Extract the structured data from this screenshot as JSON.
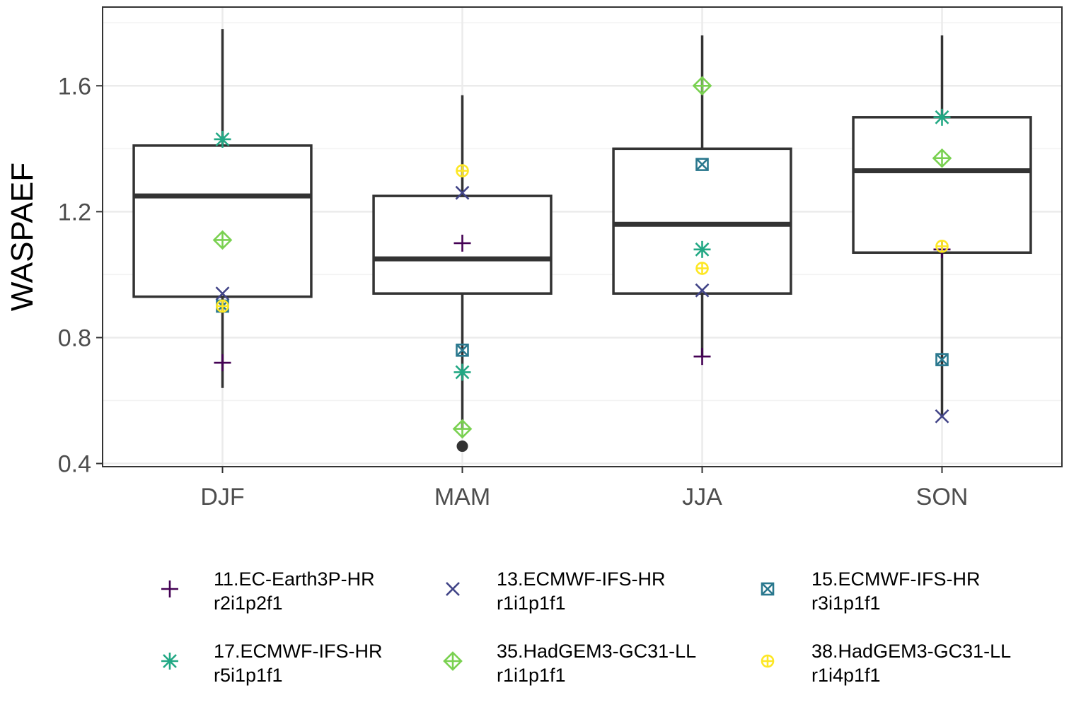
{
  "chart_data": {
    "type": "box",
    "title": "",
    "xlabel": "",
    "ylabel": "WASPAEF",
    "ylim": [
      0.39,
      1.85
    ],
    "yticks": [
      "0.4",
      "0.8",
      "1.2",
      "1.6"
    ],
    "categories": [
      "DJF",
      "MAM",
      "JJA",
      "SON"
    ],
    "boxes": [
      {
        "category": "DJF",
        "lower_whisker": 0.64,
        "q1": 0.93,
        "median": 1.25,
        "q3": 1.41,
        "upper_whisker": 1.78,
        "outliers": []
      },
      {
        "category": "MAM",
        "lower_whisker": 0.51,
        "q1": 0.94,
        "median": 1.05,
        "q3": 1.25,
        "upper_whisker": 1.57,
        "outliers": [
          0.455
        ]
      },
      {
        "category": "JJA",
        "lower_whisker": 0.74,
        "q1": 0.94,
        "median": 1.16,
        "q3": 1.4,
        "upper_whisker": 1.76,
        "outliers": []
      },
      {
        "category": "SON",
        "lower_whisker": 0.55,
        "q1": 1.07,
        "median": 1.33,
        "q3": 1.5,
        "upper_whisker": 1.76,
        "outliers": []
      }
    ],
    "series": [
      {
        "name": "11.EC-Earth3P-HR",
        "label_line1": "11.EC-Earth3P-HR",
        "label_line2": "r2i1p2f1",
        "shape": "plus",
        "color": "#440154",
        "values": [
          0.72,
          1.1,
          0.74,
          1.08
        ]
      },
      {
        "name": "13.ECMWF-IFS-HR",
        "label_line1": "13.ECMWF-IFS-HR",
        "label_line2": "r1i1p1f1",
        "shape": "cross",
        "color": "#414487",
        "values": [
          0.94,
          1.26,
          0.95,
          0.55
        ]
      },
      {
        "name": "15.ECMWF-IFS-HR",
        "label_line1": "15.ECMWF-IFS-HR",
        "label_line2": "r3i1p1f1",
        "shape": "square-cross",
        "color": "#2a788e",
        "values": [
          0.9,
          0.76,
          1.35,
          0.73
        ]
      },
      {
        "name": "17.ECMWF-IFS-HR",
        "label_line1": "17.ECMWF-IFS-HR",
        "label_line2": "r5i1p1f1",
        "shape": "asterisk",
        "color": "#22a884",
        "values": [
          1.43,
          0.69,
          1.08,
          1.5
        ]
      },
      {
        "name": "35.HadGEM3-GC31-LL",
        "label_line1": "35.HadGEM3-GC31-LL",
        "label_line2": "r1i1p1f1",
        "shape": "diamond-plus",
        "color": "#7ad151",
        "values": [
          1.11,
          0.51,
          1.6,
          1.37
        ]
      },
      {
        "name": "38.HadGEM3-GC31-LL",
        "label_line1": "38.HadGEM3-GC31-LL",
        "label_line2": "r1i4p1f1",
        "shape": "circle-plus",
        "color": "#fde725",
        "values": [
          0.9,
          1.33,
          1.02,
          1.09
        ]
      }
    ],
    "grid": true,
    "legend_position": "bottom"
  }
}
